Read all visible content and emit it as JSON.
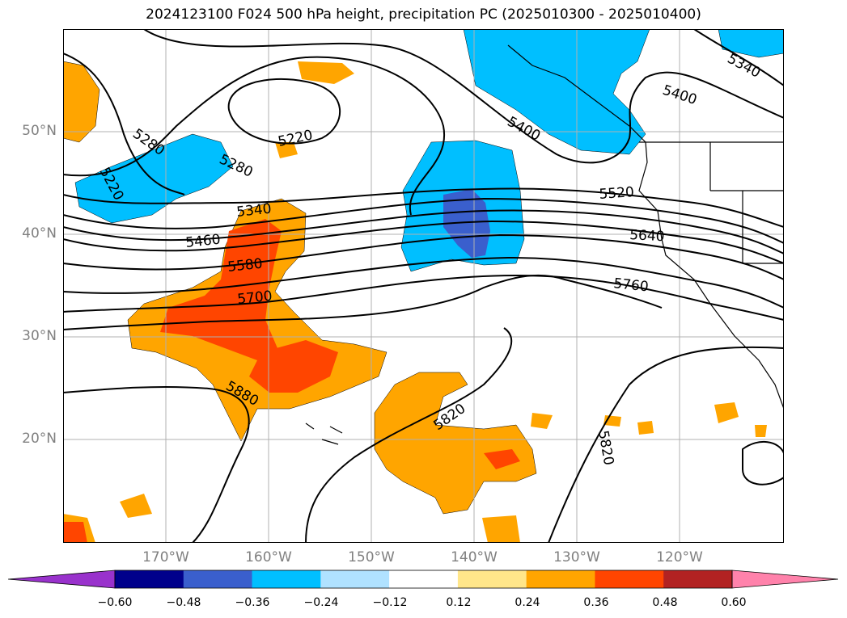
{
  "title": "2024123100 F024 500 hPa height, precipitation PC (2025010300 - 2025010400)",
  "lat_labels": [
    "50°N",
    "40°N",
    "30°N",
    "20°N"
  ],
  "lon_labels": [
    "170°W",
    "160°W",
    "150°W",
    "140°W",
    "130°W",
    "120°W"
  ],
  "contour_labels": {
    "c5220a": "5220",
    "c5280a": "5280",
    "c5220b": "5220",
    "c5280b": "5280",
    "c5400a": "5400",
    "c5400b": "5400",
    "c5340a": "5340",
    "c5520": "5520",
    "c5340b": "5340",
    "c5460": "5460",
    "c5640": "5640",
    "c5580": "5580",
    "c5700": "5700",
    "c5760": "5760",
    "c5880": "5880",
    "c5820a": "5820",
    "c5820b": "5820"
  },
  "colorbar": {
    "ticks": [
      "−0.60",
      "−0.48",
      "−0.36",
      "−0.24",
      "−0.12",
      "0.12",
      "0.24",
      "0.36",
      "0.48",
      "0.60"
    ],
    "colors": [
      "#9932cc",
      "#00008b",
      "#3a5fcd",
      "#00bfff",
      "#b0e2ff",
      "#ffffff",
      "#ffe68a",
      "#ffa500",
      "#ff4500",
      "#b22222",
      "#ff82ab"
    ]
  }
}
